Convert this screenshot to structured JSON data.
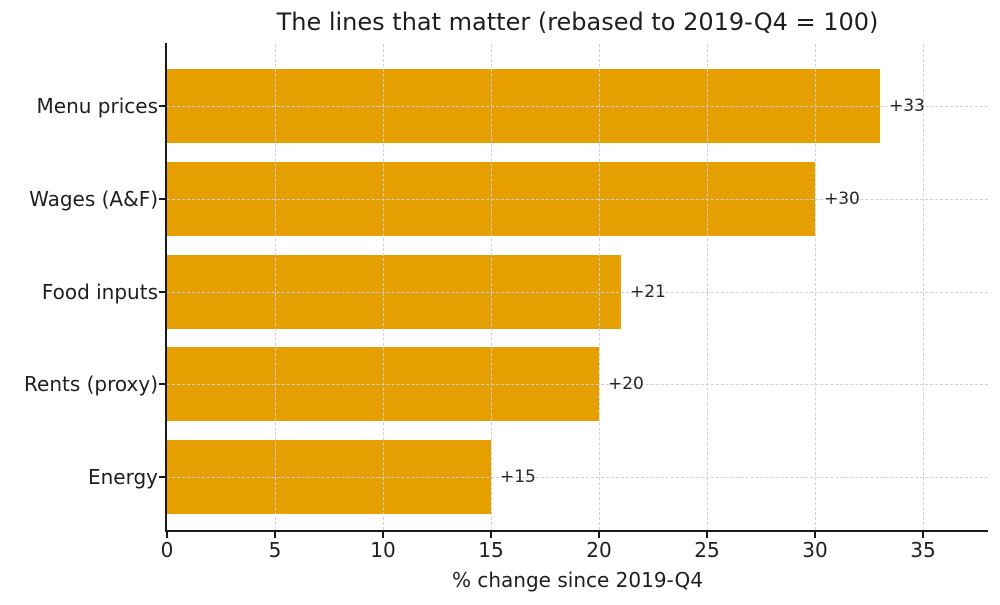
{
  "chart_data": {
    "type": "bar",
    "orientation": "horizontal",
    "title": "The lines that matter (rebased to 2019-Q4 = 100)",
    "xlabel": "% change since 2019-Q4",
    "categories": [
      "Menu prices",
      "Wages (A&F)",
      "Food inputs",
      "Rents (proxy)",
      "Energy"
    ],
    "values": [
      33,
      30,
      21,
      20,
      15
    ],
    "value_labels": [
      "+33",
      "+30",
      "+21",
      "+20",
      "+15"
    ],
    "xticks": [
      0,
      5,
      10,
      15,
      20,
      25,
      30,
      35
    ],
    "xlim": [
      0,
      38
    ],
    "grid": true,
    "grid_style": "dashed",
    "legend_position": "none",
    "colors": {
      "bar": "#E69F00",
      "grid": "#d0d0d0",
      "axis": "#1a1a1a",
      "text": "#1f1f1f",
      "value_label_text": "#262626",
      "background": "#ffffff"
    }
  }
}
